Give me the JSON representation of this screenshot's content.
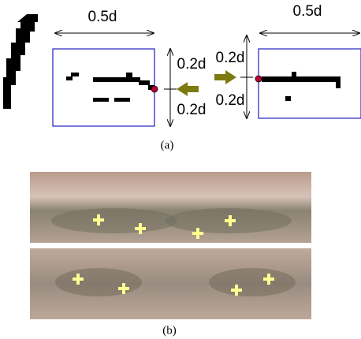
{
  "figure": {
    "a": {
      "width_labels": [
        "0.5d",
        "0.5d"
      ],
      "height_labels": [
        "0.2d",
        "0.2d",
        "0.2d",
        "0.2d"
      ],
      "caption": "(a)"
    },
    "b": {
      "caption": "(b)"
    }
  }
}
